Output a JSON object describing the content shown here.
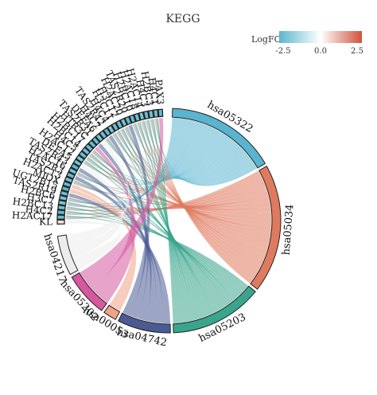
{
  "chart_data": {
    "type": "chord",
    "title": "KEGG",
    "legend": {
      "title": "LogFC",
      "ticks": [
        "-2.5",
        "0.0",
        "2.5"
      ],
      "min": -2.5,
      "max": 2.5,
      "colors": [
        "#5bb7d0",
        "#ffffff",
        "#d2523a"
      ]
    },
    "pathways": [
      {
        "id": "hsa05322",
        "color": "#5ab4cf",
        "weight": 25
      },
      {
        "id": "hsa05034",
        "color": "#e07a5f",
        "weight": 29
      },
      {
        "id": "hsa05203",
        "color": "#3aa58d",
        "weight": 21
      },
      {
        "id": "hsa04742",
        "color": "#4a5b93",
        "weight": 12
      },
      {
        "id": "hsa00053",
        "color": "#f0a285",
        "weight": 3
      },
      {
        "id": "hsa05202",
        "color": "#d6589f",
        "weight": 10
      },
      {
        "id": "hsa04217",
        "color": "#ececec",
        "weight": 9
      }
    ],
    "genes": [
      {
        "name": "KL",
        "logFC": 0.4,
        "pathways": [
          "hsa04217"
        ]
      },
      {
        "name": "H2AC17",
        "logFC": -2.3,
        "pathways": [
          "hsa05322",
          "hsa05034",
          "hsa05203"
        ]
      },
      {
        "name": "H4C2",
        "logFC": -2.4,
        "pathways": [
          "hsa05322",
          "hsa05034",
          "hsa05203"
        ]
      },
      {
        "name": "H2BC13",
        "logFC": -2.2,
        "pathways": [
          "hsa05322",
          "hsa05034",
          "hsa05203"
        ]
      },
      {
        "name": "H3C7",
        "logFC": -2.0,
        "pathways": [
          "hsa05322",
          "hsa05034",
          "hsa05203"
        ]
      },
      {
        "name": "H2BC6",
        "logFC": -2.1,
        "pathways": [
          "hsa05322",
          "hsa05034",
          "hsa05203"
        ]
      },
      {
        "name": "TAS2R19",
        "logFC": -2.3,
        "pathways": [
          "hsa04742"
        ]
      },
      {
        "name": "UGT2B15",
        "logFC": -2.5,
        "pathways": [
          "hsa00053"
        ]
      },
      {
        "name": "MIOX",
        "logFC": -2.4,
        "pathways": [
          "hsa00053"
        ]
      },
      {
        "name": "H2AC13",
        "logFC": -2.2,
        "pathways": [
          "hsa05322",
          "hsa05034",
          "hsa05203"
        ]
      },
      {
        "name": "TAS2R3",
        "logFC": -2.3,
        "pathways": [
          "hsa04742"
        ]
      },
      {
        "name": "H2AC16",
        "logFC": -2.1,
        "pathways": [
          "hsa05322",
          "hsa05034",
          "hsa05203"
        ]
      },
      {
        "name": "TAS2R43",
        "logFC": -2.4,
        "pathways": [
          "hsa04742"
        ]
      },
      {
        "name": "DEFA5",
        "logFC": -2.2,
        "pathways": [
          "hsa04217"
        ]
      },
      {
        "name": "H2AC12",
        "logFC": -2.0,
        "pathways": [
          "hsa05322",
          "hsa05034",
          "hsa05203"
        ]
      },
      {
        "name": "H4C5",
        "logFC": -2.3,
        "pathways": [
          "hsa05322",
          "hsa05034",
          "hsa05203"
        ]
      },
      {
        "name": "H2BC14",
        "logFC": -2.1,
        "pathways": [
          "hsa05322",
          "hsa05034",
          "hsa05203"
        ]
      },
      {
        "name": "H2BC17",
        "logFC": -2.2,
        "pathways": [
          "hsa05322",
          "hsa05034",
          "hsa05203"
        ]
      },
      {
        "name": "HTR3C",
        "logFC": -2.4,
        "pathways": [
          "hsa05202"
        ]
      },
      {
        "name": "TAS2R31",
        "logFC": -2.3,
        "pathways": [
          "hsa04742"
        ]
      },
      {
        "name": "DEFA6",
        "logFC": -2.1,
        "pathways": [
          "hsa04217"
        ]
      },
      {
        "name": "H4C7",
        "logFC": -2.2,
        "pathways": [
          "hsa05322",
          "hsa05034",
          "hsa05203"
        ]
      },
      {
        "name": "TAS2R42",
        "logFC": -2.4,
        "pathways": [
          "hsa04742"
        ]
      },
      {
        "name": "H4C4",
        "logFC": -2.0,
        "pathways": [
          "hsa05322",
          "hsa05034",
          "hsa05203"
        ]
      },
      {
        "name": "H3C11",
        "logFC": -2.3,
        "pathways": [
          "hsa05322",
          "hsa05034",
          "hsa05203"
        ]
      },
      {
        "name": "H3C12",
        "logFC": -2.2,
        "pathways": [
          "hsa05322",
          "hsa05034",
          "hsa05203"
        ]
      },
      {
        "name": "H2AC20",
        "logFC": -2.1,
        "pathways": [
          "hsa05322",
          "hsa05034",
          "hsa05203"
        ]
      },
      {
        "name": "TAS2R20",
        "logFC": -2.4,
        "pathways": [
          "hsa04742"
        ]
      },
      {
        "name": "H2BC10",
        "logFC": -2.3,
        "pathways": [
          "hsa05322",
          "hsa05034",
          "hsa05203"
        ]
      },
      {
        "name": "H2AC18",
        "logFC": -2.2,
        "pathways": [
          "hsa05322",
          "hsa05034",
          "hsa05203"
        ]
      },
      {
        "name": "H2AC14",
        "logFC": -2.0,
        "pathways": [
          "hsa05322",
          "hsa05034",
          "hsa05203"
        ]
      },
      {
        "name": "H4C3",
        "logFC": -2.3,
        "pathways": [
          "hsa05322",
          "hsa05034",
          "hsa05203"
        ]
      },
      {
        "name": "H2BC3",
        "logFC": -2.1,
        "pathways": [
          "hsa05322",
          "hsa05034",
          "hsa05203"
        ]
      },
      {
        "name": "H4C1",
        "logFC": -2.2,
        "pathways": [
          "hsa05322",
          "hsa05034",
          "hsa05203"
        ]
      },
      {
        "name": "PAX3",
        "logFC": -2.4,
        "pathways": [
          "hsa05202"
        ]
      }
    ]
  }
}
